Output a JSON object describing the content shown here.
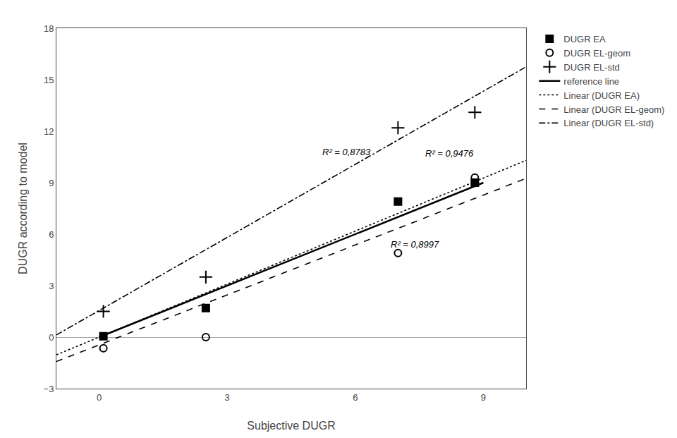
{
  "chart_data": {
    "type": "scatter",
    "xlabel": "Subjective DUGR",
    "ylabel": "DUGR according to model",
    "xlim": [
      -1,
      10
    ],
    "ylim": [
      -3,
      18
    ],
    "xticks": [
      0,
      3,
      6,
      9
    ],
    "yticks": [
      -3,
      0,
      3,
      6,
      9,
      12,
      15,
      18
    ],
    "grid": false,
    "legend": "right",
    "series": [
      {
        "name": "DUGR EA",
        "type": "scatter",
        "marker": "square",
        "color": "#000000",
        "x": [
          0.1,
          2.5,
          7.0,
          8.8
        ],
        "values": [
          0.05,
          1.7,
          7.9,
          9.0
        ]
      },
      {
        "name": "DUGR EL-geom",
        "type": "scatter",
        "marker": "circle-open",
        "color": "#000000",
        "x": [
          0.1,
          2.5,
          7.0,
          8.8
        ],
        "values": [
          -0.65,
          0.0,
          4.9,
          9.3
        ]
      },
      {
        "name": "DUGR EL-std",
        "type": "scatter",
        "marker": "cross",
        "color": "#000000",
        "x": [
          0.1,
          2.5,
          7.0,
          8.8
        ],
        "values": [
          1.5,
          3.5,
          12.2,
          13.1
        ]
      },
      {
        "name": "reference line",
        "type": "line",
        "line_style": "solid",
        "color": "#000000",
        "x": [
          0,
          9
        ],
        "values": [
          0,
          9
        ]
      },
      {
        "name": "Linear (DUGR EA)",
        "type": "line",
        "line_style": "dot",
        "color": "#000000",
        "x": [
          -1,
          10
        ],
        "values": [
          -1.03,
          10.3
        ]
      },
      {
        "name": "Linear (DUGR EL-geom)",
        "type": "line",
        "line_style": "dash",
        "color": "#000000",
        "x": [
          -1,
          10
        ],
        "values": [
          -1.42,
          9.25
        ]
      },
      {
        "name": "Linear (DUGR EL-std)",
        "type": "line",
        "line_style": "dashdot",
        "color": "#000000",
        "x": [
          -1,
          10
        ],
        "values": [
          0.13,
          15.75
        ]
      }
    ],
    "annotations": [
      {
        "text": "R² = 0,8997",
        "x": 6.8,
        "y": 5.4
      },
      {
        "text": "R² = 0,9476",
        "x": 7.6,
        "y": 10.7
      },
      {
        "text": "R² = 0,8783",
        "x": 5.2,
        "y": 10.8
      }
    ]
  }
}
